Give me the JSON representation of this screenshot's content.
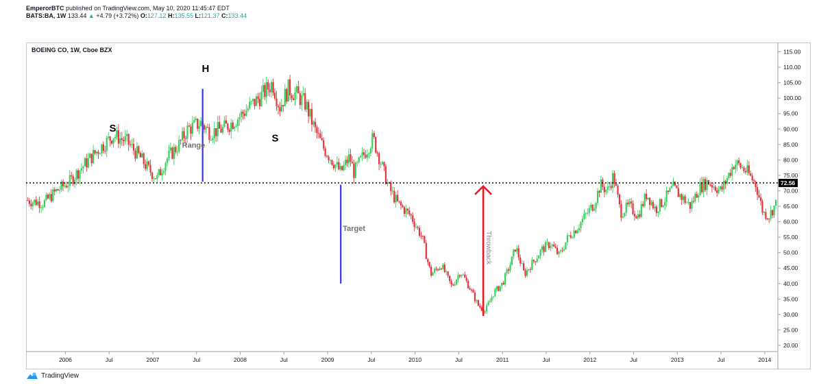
{
  "header": {
    "author": "EmperorBTC",
    "published": "published on TradingView.com, May 10, 2020 11:45:47 EDT",
    "symbol": "BATS:BA, 1W",
    "last": "133.44",
    "change": "+4.79 (+3.72%)",
    "o_label": "O:",
    "o": "127.12",
    "h_label": "H:",
    "h": "135.55",
    "l_label": "L:",
    "l": "121.37",
    "c_label": "C:",
    "c": "133.44"
  },
  "chart_data": {
    "type": "candlestick",
    "title": "BOEING CO, 1W, Cboe BZX",
    "ylim": [
      18,
      118
    ],
    "xlim": [
      2005.55,
      2014.15
    ],
    "y_ticks": [
      "20.00",
      "25.00",
      "30.00",
      "35.00",
      "40.00",
      "45.00",
      "50.00",
      "55.00",
      "60.00",
      "65.00",
      "70.00",
      "75.00",
      "80.00",
      "85.00",
      "90.00",
      "95.00",
      "100.00",
      "105.00",
      "110.00",
      "115.00"
    ],
    "x_ticks": [
      {
        "label": "2006",
        "x": 2006.0
      },
      {
        "label": "Jul",
        "x": 2006.5
      },
      {
        "label": "2007",
        "x": 2007.0
      },
      {
        "label": "Jul",
        "x": 2007.5
      },
      {
        "label": "2008",
        "x": 2008.0
      },
      {
        "label": "Jul",
        "x": 2008.5
      },
      {
        "label": "2009",
        "x": 2009.0
      },
      {
        "label": "Jul",
        "x": 2009.5
      },
      {
        "label": "2010",
        "x": 2010.0
      },
      {
        "label": "Jul",
        "x": 2010.5
      },
      {
        "label": "2011",
        "x": 2011.0
      },
      {
        "label": "Jul",
        "x": 2011.5
      },
      {
        "label": "2012",
        "x": 2012.0
      },
      {
        "label": "Jul",
        "x": 2012.5
      },
      {
        "label": "2013",
        "x": 2013.0
      },
      {
        "label": "Jul",
        "x": 2013.5
      },
      {
        "label": "2014",
        "x": 2014.0
      }
    ],
    "price_path": [
      [
        2005.55,
        67
      ],
      [
        2005.75,
        66
      ],
      [
        2005.9,
        70
      ],
      [
        2006.05,
        73
      ],
      [
        2006.2,
        78
      ],
      [
        2006.4,
        84
      ],
      [
        2006.55,
        88
      ],
      [
        2006.7,
        86
      ],
      [
        2006.85,
        81
      ],
      [
        2006.95,
        77
      ],
      [
        2007.05,
        74
      ],
      [
        2007.15,
        80
      ],
      [
        2007.3,
        85
      ],
      [
        2007.4,
        90
      ],
      [
        2007.55,
        92
      ],
      [
        2007.65,
        89
      ],
      [
        2007.8,
        90
      ],
      [
        2007.95,
        93
      ],
      [
        2008.1,
        97
      ],
      [
        2008.25,
        101
      ],
      [
        2008.37,
        105
      ],
      [
        2008.45,
        97
      ],
      [
        2008.55,
        103
      ],
      [
        2008.65,
        101
      ],
      [
        2008.75,
        98
      ],
      [
        2008.85,
        90
      ],
      [
        2008.95,
        84
      ],
      [
        2009.05,
        80
      ],
      [
        2009.15,
        76
      ],
      [
        2009.25,
        81
      ],
      [
        2009.3,
        76
      ],
      [
        2009.42,
        82
      ],
      [
        2009.52,
        87
      ],
      [
        2009.6,
        80
      ],
      [
        2009.7,
        71
      ],
      [
        2009.8,
        66
      ],
      [
        2009.95,
        62
      ],
      [
        2010.08,
        55
      ],
      [
        2010.18,
        43
      ],
      [
        2010.3,
        46
      ],
      [
        2010.42,
        39
      ],
      [
        2010.52,
        44
      ],
      [
        2010.62,
        39
      ],
      [
        2010.72,
        33
      ],
      [
        2010.8,
        31
      ],
      [
        2010.9,
        37
      ],
      [
        2011.0,
        40
      ],
      [
        2011.1,
        47
      ],
      [
        2011.15,
        52
      ],
      [
        2011.25,
        43
      ],
      [
        2011.35,
        47
      ],
      [
        2011.45,
        51
      ],
      [
        2011.55,
        53
      ],
      [
        2011.65,
        49
      ],
      [
        2011.75,
        55
      ],
      [
        2011.85,
        58
      ],
      [
        2011.95,
        62
      ],
      [
        2012.05,
        66
      ],
      [
        2012.12,
        72
      ],
      [
        2012.2,
        70
      ],
      [
        2012.27,
        75
      ],
      [
        2012.35,
        63
      ],
      [
        2012.45,
        65
      ],
      [
        2012.55,
        62
      ],
      [
        2012.65,
        69
      ],
      [
        2012.75,
        64
      ],
      [
        2012.85,
        67
      ],
      [
        2012.95,
        71
      ],
      [
        2013.05,
        68
      ],
      [
        2013.15,
        65
      ],
      [
        2013.25,
        71
      ],
      [
        2013.35,
        73
      ],
      [
        2013.5,
        70
      ],
      [
        2013.65,
        79
      ],
      [
        2013.72,
        78
      ],
      [
        2013.8,
        76
      ],
      [
        2013.9,
        72
      ],
      [
        2013.98,
        63
      ],
      [
        2014.05,
        62
      ],
      [
        2014.15,
        67
      ]
    ],
    "reference_price": 72.56,
    "price_label": "72.56",
    "annotations": [
      {
        "text": "S",
        "role": "left-shoulder"
      },
      {
        "text": "H",
        "role": "head"
      },
      {
        "text": "S",
        "role": "right-shoulder"
      },
      {
        "text": "Range",
        "role": "range-label"
      },
      {
        "text": "Target",
        "role": "target-label"
      },
      {
        "text": "Throwback",
        "role": "throwback-label"
      }
    ],
    "range_line": {
      "x": 2007.57,
      "from": 73,
      "to": 103,
      "color": "#3d2ff3"
    },
    "target_line": {
      "x": 2009.15,
      "from": 40,
      "to": 72,
      "color": "#3d2ff3"
    },
    "throwback_arrow": {
      "x": 2010.78,
      "from": 29.5,
      "to": 71.5,
      "color": "#e31b23"
    },
    "colors": {
      "up": "#34d058",
      "down": "#e5323b",
      "text": "#131722"
    }
  },
  "footer": {
    "brand": "TradingView"
  }
}
